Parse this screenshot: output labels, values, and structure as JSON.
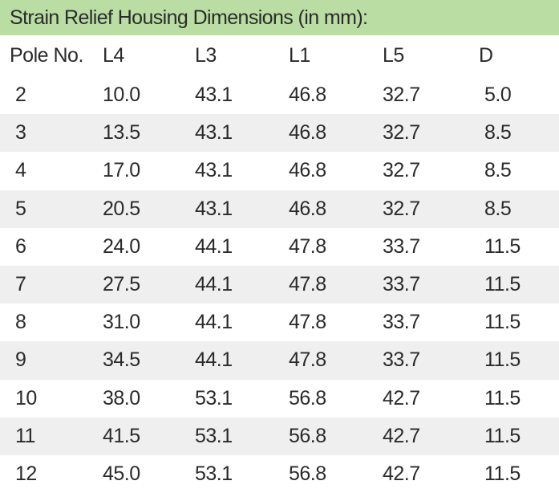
{
  "title": "Strain Relief Housing Dimensions (in mm):",
  "headers": [
    "Pole No.",
    "L4",
    "L3",
    "L1",
    "L5",
    "D"
  ],
  "rows": [
    [
      "2",
      "10.0",
      "43.1",
      "46.8",
      "32.7",
      "5.0"
    ],
    [
      "3",
      "13.5",
      "43.1",
      "46.8",
      "32.7",
      "8.5"
    ],
    [
      "4",
      "17.0",
      "43.1",
      "46.8",
      "32.7",
      "8.5"
    ],
    [
      "5",
      "20.5",
      "43.1",
      "46.8",
      "32.7",
      "8.5"
    ],
    [
      "6",
      "24.0",
      "44.1",
      "47.8",
      "33.7",
      "11.5"
    ],
    [
      "7",
      "27.5",
      "44.1",
      "47.8",
      "33.7",
      "11.5"
    ],
    [
      "8",
      "31.0",
      "44.1",
      "47.8",
      "33.7",
      "11.5"
    ],
    [
      "9",
      "34.5",
      "44.1",
      "47.8",
      "33.7",
      "11.5"
    ],
    [
      "10",
      "38.0",
      "53.1",
      "56.8",
      "42.7",
      "11.5"
    ],
    [
      "11",
      "41.5",
      "53.1",
      "56.8",
      "42.7",
      "11.5"
    ],
    [
      "12",
      "45.0",
      "53.1",
      "56.8",
      "42.7",
      "11.5"
    ]
  ],
  "colors": {
    "title_bg": "#b9dda3",
    "row_shade": "#efefef",
    "text": "#2a2a2a"
  }
}
